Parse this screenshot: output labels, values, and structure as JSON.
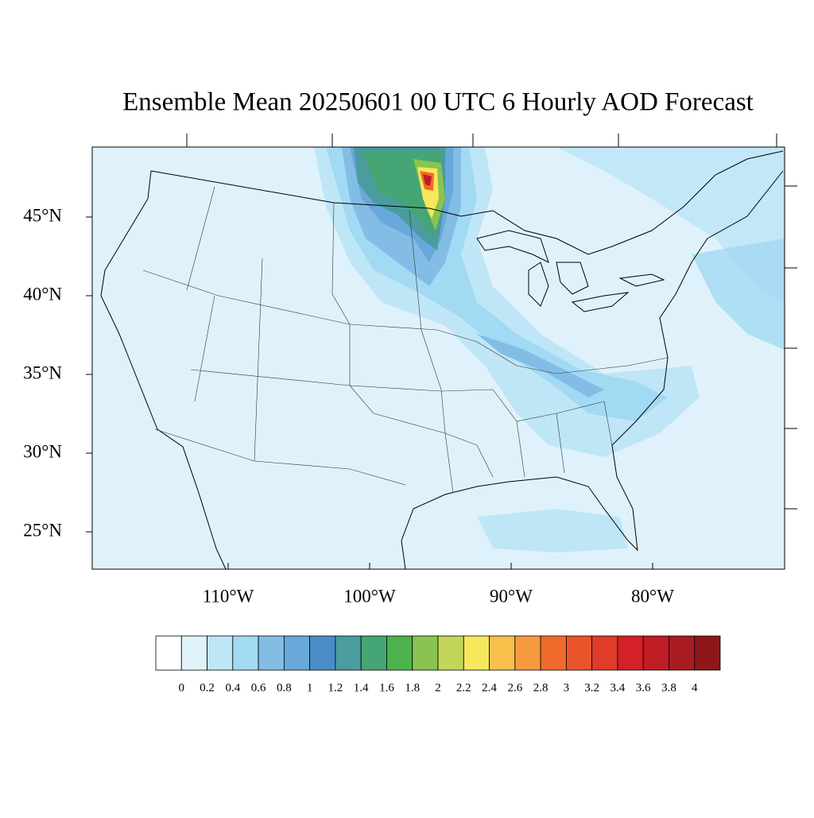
{
  "title": "Ensemble Mean 20250601 00 UTC 6 Hourly AOD Forecast",
  "lat_labels": [
    "45°N",
    "40°N",
    "35°N",
    "30°N",
    "25°N"
  ],
  "lon_labels": [
    "110°W",
    "100°W",
    "90°W",
    "80°W"
  ],
  "colorbar": {
    "levels": [
      0,
      0.2,
      0.4,
      0.6,
      0.8,
      1,
      1.2,
      1.4,
      1.6,
      1.8,
      2,
      2.2,
      2.4,
      2.6,
      2.8,
      3,
      3.2,
      3.4,
      3.6,
      3.8,
      4
    ],
    "colors": [
      "#ffffff",
      "#e0f3fb",
      "#bfe6f7",
      "#a2d9f3",
      "#83bde6",
      "#68a8da",
      "#4a8cc8",
      "#4a9c9e",
      "#46a574",
      "#4cb24c",
      "#88c44f",
      "#c3d65a",
      "#f6e75c",
      "#f8c04b",
      "#f69a3e",
      "#f06b2c",
      "#e9542a",
      "#e13b29",
      "#d42028",
      "#bf1d24",
      "#a81b20",
      "#8d171b"
    ]
  }
}
